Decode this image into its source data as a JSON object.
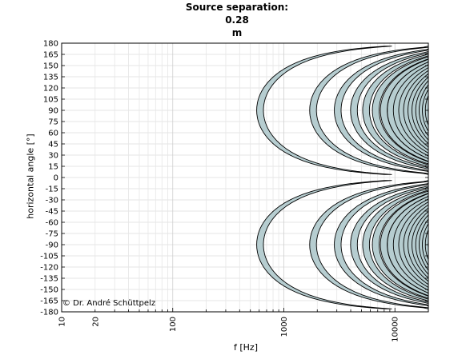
{
  "title_line1": "Source separation:",
  "title_line2": "0.28",
  "title_line3": "m",
  "copyright": "© Dr. André Schüttpelz",
  "chart_data": {
    "type": "contour",
    "title": "Source separation: 0.28 m",
    "xlabel": "f [Hz]",
    "ylabel": "horizontal angle [°]",
    "xscale": "log",
    "xlim": [
      10,
      20000
    ],
    "ylim": [
      -180,
      180
    ],
    "grid": true,
    "x_tick_labels": [
      "10",
      "20",
      "100",
      "1000",
      "10000"
    ],
    "x_ticks": [
      10,
      20,
      100,
      1000,
      10000
    ],
    "y_ticks": [
      180,
      165,
      150,
      135,
      120,
      105,
      90,
      75,
      60,
      45,
      30,
      15,
      0,
      -15,
      -30,
      -45,
      -60,
      -75,
      -90,
      -105,
      -120,
      -135,
      -150,
      -165,
      -180
    ],
    "source_separation_m": 0.28,
    "speed_of_sound_m_s": 343,
    "null_orders": [
      1,
      3,
      5,
      7,
      9,
      11,
      13,
      15,
      17,
      19,
      21,
      23,
      25,
      27,
      29,
      31,
      33,
      35,
      37,
      39,
      41,
      43
    ],
    "fill_color": "#b6cdd0",
    "line_color": "#000000"
  }
}
